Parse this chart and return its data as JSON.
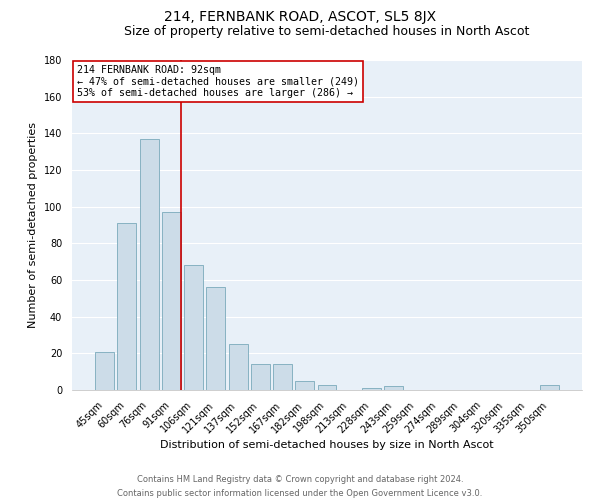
{
  "title": "214, FERNBANK ROAD, ASCOT, SL5 8JX",
  "subtitle": "Size of property relative to semi-detached houses in North Ascot",
  "xlabel": "Distribution of semi-detached houses by size in North Ascot",
  "ylabel": "Number of semi-detached properties",
  "bar_labels": [
    "45sqm",
    "60sqm",
    "76sqm",
    "91sqm",
    "106sqm",
    "121sqm",
    "137sqm",
    "152sqm",
    "167sqm",
    "182sqm",
    "198sqm",
    "213sqm",
    "228sqm",
    "243sqm",
    "259sqm",
    "274sqm",
    "289sqm",
    "304sqm",
    "320sqm",
    "335sqm",
    "350sqm"
  ],
  "bar_values": [
    21,
    91,
    137,
    97,
    68,
    56,
    25,
    14,
    14,
    5,
    3,
    0,
    1,
    2,
    0,
    0,
    0,
    0,
    0,
    0,
    3
  ],
  "bar_color": "#ccdce8",
  "bar_edge_color": "#7aaabb",
  "highlight_index": 3,
  "highlight_line_color": "#cc0000",
  "ylim": [
    0,
    180
  ],
  "yticks": [
    0,
    20,
    40,
    60,
    80,
    100,
    120,
    140,
    160,
    180
  ],
  "annotation_title": "214 FERNBANK ROAD: 92sqm",
  "annotation_line1": "← 47% of semi-detached houses are smaller (249)",
  "annotation_line2": "53% of semi-detached houses are larger (286) →",
  "annotation_box_color": "#ffffff",
  "annotation_box_edge": "#cc0000",
  "footer_line1": "Contains HM Land Registry data © Crown copyright and database right 2024.",
  "footer_line2": "Contains public sector information licensed under the Open Government Licence v3.0.",
  "background_color": "#ffffff",
  "plot_bg_color": "#e8f0f8",
  "grid_color": "#ffffff",
  "title_fontsize": 10,
  "subtitle_fontsize": 9,
  "tick_fontsize": 7,
  "label_fontsize": 8,
  "footer_fontsize": 6
}
